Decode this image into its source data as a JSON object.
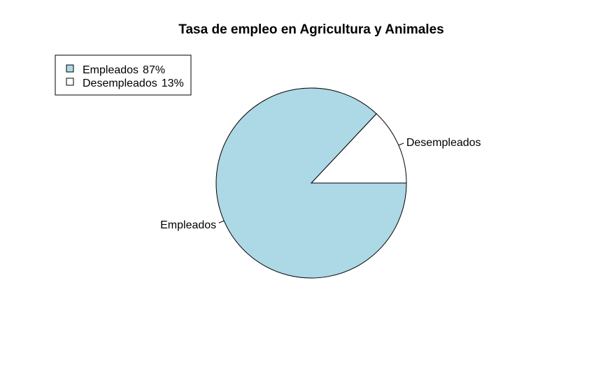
{
  "chart_data": {
    "type": "pie",
    "title": "Tasa de empleo en Agricultura y Animales",
    "slices": [
      {
        "label": "Empleados",
        "value": 87,
        "color": "#add8e6"
      },
      {
        "label": "Desempleados",
        "value": 13,
        "color": "#ffffff"
      }
    ],
    "legend": {
      "position": "top-left",
      "entries": [
        {
          "label": "Empleados",
          "percent": "87%",
          "color": "#add8e6"
        },
        {
          "label": "Desempleados",
          "percent": "13%",
          "color": "#ffffff"
        }
      ]
    },
    "start_angle": "counterclockwise from 3 o'clock"
  }
}
